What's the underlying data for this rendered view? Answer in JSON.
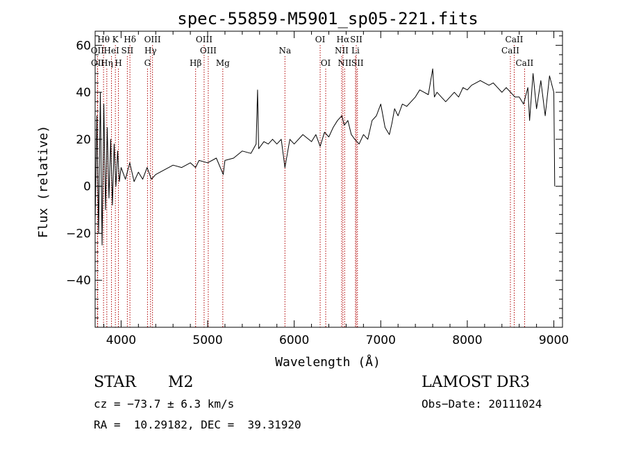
{
  "chart_data": {
    "type": "line",
    "title": "spec-55859-M5901_sp05-221.fits",
    "xlabel": "Wavelength (Å)",
    "ylabel": "Flux (relative)",
    "xlim": [
      3700,
      9100
    ],
    "ylim": [
      -60,
      66
    ],
    "xticks": [
      4000,
      5000,
      6000,
      7000,
      8000,
      9000
    ],
    "yticks": [
      -40,
      -20,
      0,
      20,
      40,
      60
    ],
    "yticklabels": [
      "−40",
      "−20",
      "0",
      "20",
      "40",
      "60"
    ],
    "series": [
      {
        "name": "flux",
        "x": [
          3700,
          3720,
          3740,
          3760,
          3780,
          3800,
          3820,
          3840,
          3860,
          3880,
          3900,
          3920,
          3940,
          3960,
          3980,
          4000,
          4050,
          4100,
          4150,
          4200,
          4250,
          4300,
          4350,
          4400,
          4500,
          4600,
          4700,
          4800,
          4860,
          4900,
          5000,
          5100,
          5180,
          5200,
          5300,
          5400,
          5500,
          5560,
          5577,
          5590,
          5650,
          5700,
          5750,
          5800,
          5850,
          5893,
          5950,
          6000,
          6100,
          6200,
          6250,
          6300,
          6350,
          6400,
          6450,
          6500,
          6550,
          6580,
          6620,
          6660,
          6700,
          6750,
          6800,
          6850,
          6900,
          6950,
          7000,
          7050,
          7100,
          7130,
          7160,
          7200,
          7250,
          7300,
          7350,
          7400,
          7450,
          7500,
          7550,
          7600,
          7620,
          7650,
          7700,
          7750,
          7800,
          7850,
          7900,
          7950,
          8000,
          8050,
          8100,
          8150,
          8200,
          8250,
          8300,
          8350,
          8400,
          8450,
          8500,
          8550,
          8600,
          8650,
          8700,
          8720,
          8760,
          8800,
          8850,
          8900,
          8950,
          9000,
          9010
        ],
        "y": [
          -15,
          30,
          -20,
          40,
          -25,
          35,
          -10,
          25,
          -5,
          20,
          -8,
          18,
          0,
          15,
          2,
          8,
          3,
          10,
          2,
          6,
          3,
          8,
          3,
          5,
          7,
          9,
          8,
          10,
          8,
          11,
          10,
          12,
          5,
          11,
          12,
          15,
          14,
          18,
          41,
          16,
          19,
          18,
          20,
          18,
          20,
          8,
          20,
          18,
          22,
          19,
          22,
          17,
          23,
          21,
          25,
          28,
          30,
          26,
          28,
          22,
          20,
          18,
          22,
          20,
          28,
          30,
          35,
          25,
          22,
          27,
          33,
          30,
          35,
          34,
          36,
          38,
          41,
          40,
          39,
          50,
          38,
          40,
          38,
          36,
          38,
          40,
          38,
          42,
          41,
          43,
          44,
          45,
          44,
          43,
          44,
          42,
          40,
          42,
          40,
          38,
          38,
          35,
          42,
          28,
          48,
          33,
          45,
          30,
          47,
          40,
          0
        ]
      }
    ],
    "lines": [
      {
        "label": "Hθ",
        "x": 3797,
        "row": 1
      },
      {
        "label": "OII",
        "x": 3727,
        "row": 2
      },
      {
        "label": "OII",
        "x": 3729,
        "row": 3
      },
      {
        "label": "Hη",
        "x": 3835,
        "row": 3
      },
      {
        "label": "HeI",
        "x": 3889,
        "row": 2
      },
      {
        "label": "K",
        "x": 3934,
        "row": 1
      },
      {
        "label": "H",
        "x": 3969,
        "row": 3
      },
      {
        "label": "SII",
        "x": 4072,
        "row": 2
      },
      {
        "label": "Hδ",
        "x": 4102,
        "row": 1
      },
      {
        "label": "OIII",
        "x": 4363,
        "row": 1
      },
      {
        "label": "Hγ",
        "x": 4340,
        "row": 2
      },
      {
        "label": "G",
        "x": 4305,
        "row": 3
      },
      {
        "label": "OIII",
        "x": 4959,
        "row": 1
      },
      {
        "label": "OIII",
        "x": 5007,
        "row": 2
      },
      {
        "label": "Hβ",
        "x": 4861,
        "row": 3
      },
      {
        "label": "Mg",
        "x": 5175,
        "row": 3
      },
      {
        "label": "Na",
        "x": 5893,
        "row": 2
      },
      {
        "label": "OI",
        "x": 6300,
        "row": 1
      },
      {
        "label": "OI",
        "x": 6364,
        "row": 3
      },
      {
        "label": "Hα",
        "x": 6563,
        "row": 1
      },
      {
        "label": "NII",
        "x": 6548,
        "row": 2
      },
      {
        "label": "NII",
        "x": 6583,
        "row": 3
      },
      {
        "label": "SII",
        "x": 6717,
        "row": 1
      },
      {
        "label": "Li",
        "x": 6708,
        "row": 2
      },
      {
        "label": "SII",
        "x": 6731,
        "row": 3
      },
      {
        "label": "CaII",
        "x": 8542,
        "row": 1
      },
      {
        "label": "CaII",
        "x": 8498,
        "row": 2
      },
      {
        "label": "CaII",
        "x": 8662,
        "row": 3
      }
    ]
  },
  "info": {
    "obj_class": "STAR",
    "subclass": "M2",
    "survey": "LAMOST DR3",
    "cz": "cz = −73.7 ± 6.3 km/s",
    "obs_date": "Obs−Date: 20111024",
    "coords": "RA =  10.29182, DEC =  39.31920"
  },
  "colors": {
    "spectrum": "#000000",
    "line_marker": "#b00000",
    "axes": "#000000",
    "background": "#ffffff"
  }
}
